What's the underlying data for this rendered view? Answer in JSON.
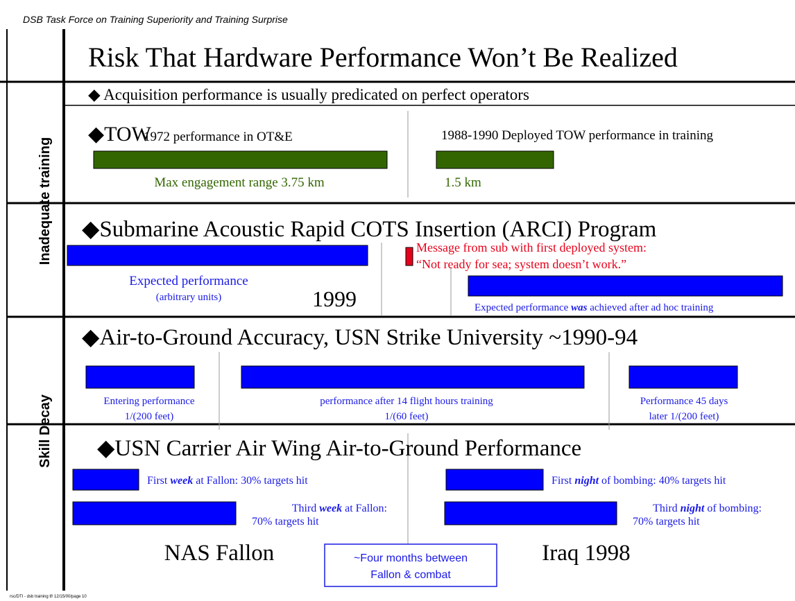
{
  "header": "DSB Task Force on Training Superiority and Training Surprise",
  "title": "Risk That Hardware Performance Won’t Be Realized",
  "side_labels": [
    "Inadequate training",
    "Skill Decay"
  ],
  "intro": "◆ Acquisition performance is usually predicated on perfect operators",
  "tow": {
    "heading": "◆TOW",
    "left_caption": "1972 performance in OT&E",
    "right_caption": "1988-1990 Deployed TOW performance in training",
    "left_label": "Max engagement range 3.75 km",
    "right_label": "1.5 km"
  },
  "arci": {
    "heading": "◆Submarine Acoustic Rapid COTS Insertion (ARCI) Program",
    "message": [
      "Message from sub with first deployed system:",
      "“Not ready for sea; system doesn’t work.”"
    ],
    "expected": "Expected performance",
    "units": "(arbitrary units)",
    "year": "1999",
    "achieved": {
      "before": "Expected performance ",
      "em": "was",
      "after": " achieved after ad hoc training"
    }
  },
  "strike": {
    "heading": "◆Air-to-Ground Accuracy, USN Strike University ~1990-94",
    "labels": [
      [
        "Entering performance",
        "1/(200 feet)"
      ],
      [
        "performance after 14 flight hours training",
        "1/(60 feet)"
      ],
      [
        "Performance 45 days",
        "later 1/(200 feet)"
      ]
    ]
  },
  "carrier": {
    "heading": "◆USN Carrier Air Wing Air-to-Ground Performance",
    "fallon_first": {
      "before": "First ",
      "em": "week",
      "after": " at Fallon: 30% targets hit"
    },
    "fallon_third": {
      "before": "Third ",
      "em": "week",
      "after": " at Fallon:",
      "line2": "70% targets hit"
    },
    "iraq_first": {
      "before": "First ",
      "em": "night",
      "after": " of bombing: 40% targets hit"
    },
    "iraq_third": {
      "before": "Third ",
      "em": "night",
      "after": " of bombing:",
      "line2": "70% targets hit"
    },
    "left_place": "NAS Fallon",
    "right_place": "Iraq 1998",
    "gap_note": [
      "~Four months between",
      "Fallon & combat"
    ]
  },
  "footer": "rsc/DTI - dsb training tf/ 12/15/00/page 10"
}
